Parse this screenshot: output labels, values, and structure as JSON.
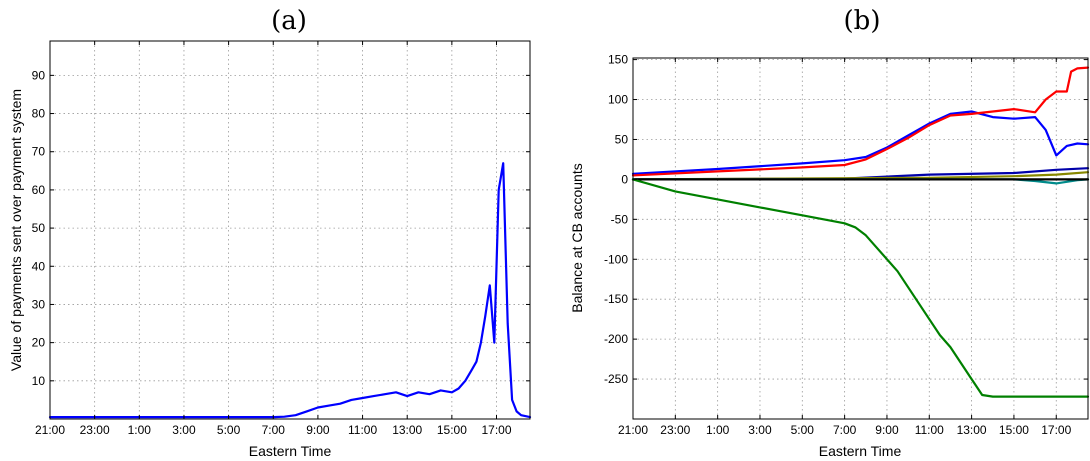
{
  "chart_data": [
    {
      "type": "line",
      "title": "(a)",
      "xlabel": "Eastern Time",
      "ylabel": "Value of payments sent over payment system",
      "xlim": [
        0,
        21.5
      ],
      "ylim": [
        0,
        99
      ],
      "x_ticks": [
        0,
        2,
        4,
        6,
        8,
        10,
        12,
        14,
        16,
        18,
        20
      ],
      "x_tick_labels": [
        "21:00",
        "23:00",
        "1:00",
        "3:00",
        "5:00",
        "7:00",
        "9:00",
        "11:00",
        "13:00",
        "15:00",
        "17:00"
      ],
      "y_ticks": [
        10,
        20,
        30,
        40,
        50,
        60,
        70,
        80,
        90
      ],
      "y_tick_labels": [
        "10",
        "20",
        "30",
        "40",
        "50",
        "60",
        "70",
        "80",
        "90"
      ],
      "grid": true,
      "series": [
        {
          "color": "#0000ff",
          "x": [
            0,
            2,
            4,
            6,
            8,
            9,
            10,
            10.5,
            11,
            11.5,
            12,
            12.5,
            13,
            13.5,
            14,
            14.5,
            15,
            15.5,
            16,
            16.5,
            17,
            17.5,
            18,
            18.3,
            18.6,
            18.9,
            19.1,
            19.3,
            19.5,
            19.7,
            19.9,
            20.1,
            20.3,
            20.5,
            20.7,
            20.9,
            21.1,
            21.5
          ],
          "y": [
            0.5,
            0.5,
            0.5,
            0.5,
            0.5,
            0.5,
            0.5,
            0.6,
            1.0,
            2.0,
            3.0,
            3.5,
            4.0,
            5.0,
            5.5,
            6.0,
            6.5,
            7.0,
            6.0,
            7.0,
            6.5,
            7.5,
            7.0,
            8.0,
            10.0,
            13.0,
            15.0,
            20.0,
            27.0,
            35.0,
            20.0,
            60.0,
            67.0,
            25.0,
            5.0,
            2.0,
            1.0,
            0.5
          ]
        }
      ]
    },
    {
      "type": "line",
      "title": "(b)",
      "xlabel": "Eastern Time",
      "ylabel": "Balance at CB accounts",
      "xlim": [
        0,
        21.5
      ],
      "ylim": [
        -300,
        152
      ],
      "x_ticks": [
        0,
        2,
        4,
        6,
        8,
        10,
        12,
        14,
        16,
        18,
        20
      ],
      "x_tick_labels": [
        "21:00",
        "23:00",
        "1:00",
        "3:00",
        "5:00",
        "7:00",
        "9:00",
        "11:00",
        "13:00",
        "15:00",
        "17:00"
      ],
      "y_ticks": [
        -250,
        -200,
        -150,
        -100,
        -50,
        0,
        50,
        100,
        150
      ],
      "y_tick_labels": [
        "-250",
        "-200",
        "-150",
        "-100",
        "-50",
        "0",
        "50",
        "100",
        "150"
      ],
      "grid": true,
      "series": [
        {
          "color": "#0000ff",
          "x": [
            0,
            4,
            8,
            10,
            11,
            12,
            13,
            14,
            15,
            16,
            17,
            18,
            19,
            19.5,
            20,
            20.5,
            21,
            21.5
          ],
          "y": [
            7,
            13,
            20,
            24,
            28,
            40,
            55,
            70,
            82,
            85,
            78,
            76,
            78,
            62,
            30,
            42,
            45,
            44
          ]
        },
        {
          "color": "#ff0000",
          "x": [
            0,
            4,
            8,
            10,
            11,
            12,
            13,
            14,
            15,
            16,
            17,
            18,
            19,
            19.5,
            20,
            20.5,
            20.7,
            21,
            21.5
          ],
          "y": [
            5,
            10,
            15,
            18,
            25,
            38,
            52,
            68,
            80,
            82,
            85,
            88,
            84,
            100,
            110,
            110,
            135,
            139,
            140
          ]
        },
        {
          "color": "#0000aa",
          "x": [
            0,
            10,
            14,
            18,
            20,
            21.5
          ],
          "y": [
            0,
            1,
            6,
            8,
            12,
            14
          ]
        },
        {
          "color": "#888800",
          "x": [
            0,
            14,
            18,
            20,
            21.5
          ],
          "y": [
            0,
            2,
            4,
            6,
            9
          ]
        },
        {
          "color": "#008b8b",
          "x": [
            0,
            18,
            19,
            20,
            20.5,
            21,
            21.5
          ],
          "y": [
            0,
            0,
            -2,
            -5,
            -3,
            -1,
            0
          ]
        },
        {
          "color": "#000000",
          "x": [
            0,
            21.5
          ],
          "y": [
            0,
            0
          ]
        },
        {
          "color": "#008000",
          "x": [
            0,
            2,
            4,
            6,
            8,
            9,
            10,
            10.5,
            11,
            11.5,
            12,
            12.5,
            13,
            13.5,
            14,
            14.5,
            15,
            15.5,
            16,
            16.5,
            17,
            17.5,
            21.5
          ],
          "y": [
            0,
            -15,
            -25,
            -35,
            -45,
            -50,
            -55,
            -60,
            -70,
            -85,
            -100,
            -115,
            -135,
            -155,
            -175,
            -195,
            -210,
            -230,
            -250,
            -270,
            -272,
            -272,
            -272
          ]
        }
      ]
    }
  ]
}
